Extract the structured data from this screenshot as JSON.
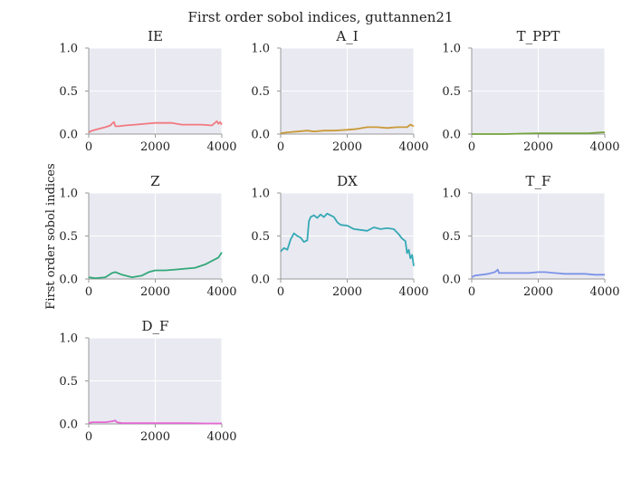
{
  "figure": {
    "title": "First order sobol indices, guttannen21",
    "ylabel": "First order sobol indices"
  },
  "chart_data": [
    {
      "type": "line",
      "title": "IE",
      "color": "#f07a80",
      "xlim": [
        0,
        4000
      ],
      "ylim": [
        0,
        1.0
      ],
      "xticks": [
        "0",
        "2000",
        "4000"
      ],
      "yticks": [
        "0.0",
        "0.5",
        "1.0"
      ],
      "grid": true,
      "series": [
        {
          "x": [
            0,
            100,
            300,
            500,
            650,
            720,
            760,
            800,
            900,
            1100,
            1400,
            1700,
            2000,
            2200,
            2500,
            2800,
            3100,
            3400,
            3700,
            3850,
            3900,
            3950,
            4000
          ],
          "y": [
            0.02,
            0.04,
            0.06,
            0.08,
            0.1,
            0.13,
            0.14,
            0.09,
            0.09,
            0.1,
            0.11,
            0.12,
            0.13,
            0.13,
            0.13,
            0.11,
            0.11,
            0.11,
            0.1,
            0.15,
            0.12,
            0.14,
            0.11
          ]
        }
      ]
    },
    {
      "type": "line",
      "title": "A_I",
      "color": "#c99a38",
      "xlim": [
        0,
        4000
      ],
      "ylim": [
        0,
        1.0
      ],
      "xticks": [
        "0",
        "2000",
        "4000"
      ],
      "yticks": [
        "0.0",
        "0.5",
        "1.0"
      ],
      "grid": true,
      "series": [
        {
          "x": [
            0,
            200,
            500,
            800,
            1000,
            1300,
            1600,
            2000,
            2300,
            2600,
            2900,
            3200,
            3500,
            3800,
            3900,
            4000
          ],
          "y": [
            0.01,
            0.02,
            0.03,
            0.04,
            0.03,
            0.04,
            0.04,
            0.05,
            0.06,
            0.08,
            0.08,
            0.07,
            0.08,
            0.08,
            0.11,
            0.09
          ]
        }
      ]
    },
    {
      "type": "line",
      "title": "T_PPT",
      "color": "#74a33a",
      "xlim": [
        0,
        4000
      ],
      "ylim": [
        0,
        1.0
      ],
      "xticks": [
        "0",
        "2000",
        "4000"
      ],
      "yticks": [
        "0.0",
        "0.5",
        "1.0"
      ],
      "grid": true,
      "series": [
        {
          "x": [
            0,
            500,
            1000,
            1500,
            2000,
            2500,
            3000,
            3500,
            3900,
            4000
          ],
          "y": [
            0.0,
            0.0,
            0.0,
            0.005,
            0.01,
            0.01,
            0.01,
            0.01,
            0.02,
            0.02
          ]
        }
      ]
    },
    {
      "type": "line",
      "title": "Z",
      "color": "#33a87a",
      "xlim": [
        0,
        4000
      ],
      "ylim": [
        0,
        1.0
      ],
      "xticks": [
        "0",
        "2000",
        "4000"
      ],
      "yticks": [
        "0.0",
        "0.5",
        "1.0"
      ],
      "grid": true,
      "series": [
        {
          "x": [
            0,
            200,
            500,
            700,
            800,
            1000,
            1300,
            1600,
            1800,
            2000,
            2300,
            2600,
            2900,
            3200,
            3500,
            3700,
            3900,
            4000
          ],
          "y": [
            0.02,
            0.01,
            0.02,
            0.07,
            0.08,
            0.05,
            0.02,
            0.04,
            0.08,
            0.1,
            0.1,
            0.11,
            0.12,
            0.13,
            0.17,
            0.21,
            0.25,
            0.31
          ]
        }
      ]
    },
    {
      "type": "line",
      "title": "DX",
      "color": "#35a9b5",
      "xlim": [
        0,
        4000
      ],
      "ylim": [
        0,
        1.0
      ],
      "xticks": [
        "0",
        "2000",
        "4000"
      ],
      "yticks": [
        "0.0",
        "0.5",
        "1.0"
      ],
      "grid": true,
      "series": [
        {
          "x": [
            0,
            100,
            200,
            300,
            400,
            500,
            600,
            700,
            800,
            850,
            900,
            1000,
            1100,
            1200,
            1300,
            1400,
            1500,
            1600,
            1700,
            1800,
            2000,
            2200,
            2400,
            2600,
            2800,
            3000,
            3200,
            3400,
            3550,
            3650,
            3750,
            3800,
            3850,
            3900,
            3950,
            4000
          ],
          "y": [
            0.32,
            0.36,
            0.34,
            0.46,
            0.53,
            0.5,
            0.48,
            0.43,
            0.45,
            0.67,
            0.72,
            0.74,
            0.71,
            0.75,
            0.72,
            0.76,
            0.74,
            0.72,
            0.66,
            0.63,
            0.62,
            0.58,
            0.57,
            0.56,
            0.6,
            0.58,
            0.59,
            0.58,
            0.52,
            0.47,
            0.44,
            0.3,
            0.34,
            0.24,
            0.28,
            0.15
          ]
        }
      ]
    },
    {
      "type": "line",
      "title": "T_F",
      "color": "#7c93e8",
      "xlim": [
        0,
        4000
      ],
      "ylim": [
        0,
        1.0
      ],
      "xticks": [
        "0",
        "2000",
        "4000"
      ],
      "yticks": [
        "0.0",
        "0.5",
        "1.0"
      ],
      "grid": true,
      "series": [
        {
          "x": [
            0,
            100,
            300,
            500,
            700,
            780,
            820,
            900,
            1100,
            1400,
            1700,
            2000,
            2200,
            2500,
            2800,
            3100,
            3400,
            3700,
            4000
          ],
          "y": [
            0.02,
            0.04,
            0.05,
            0.06,
            0.08,
            0.11,
            0.07,
            0.07,
            0.07,
            0.07,
            0.07,
            0.08,
            0.08,
            0.07,
            0.06,
            0.06,
            0.06,
            0.05,
            0.05
          ]
        }
      ]
    },
    {
      "type": "line",
      "title": "D_F",
      "color": "#e466d2",
      "xlim": [
        0,
        4000
      ],
      "ylim": [
        0,
        1.0
      ],
      "xticks": [
        "0",
        "2000",
        "4000"
      ],
      "yticks": [
        "0.0",
        "0.5",
        "1.0"
      ],
      "grid": true,
      "series": [
        {
          "x": [
            0,
            100,
            300,
            500,
            700,
            800,
            850,
            1000,
            1300,
            1600,
            2000,
            2500,
            3000,
            3500,
            4000
          ],
          "y": [
            0.01,
            0.02,
            0.02,
            0.02,
            0.03,
            0.04,
            0.02,
            0.01,
            0.01,
            0.01,
            0.01,
            0.01,
            0.01,
            0.005,
            0.005
          ]
        }
      ]
    }
  ]
}
